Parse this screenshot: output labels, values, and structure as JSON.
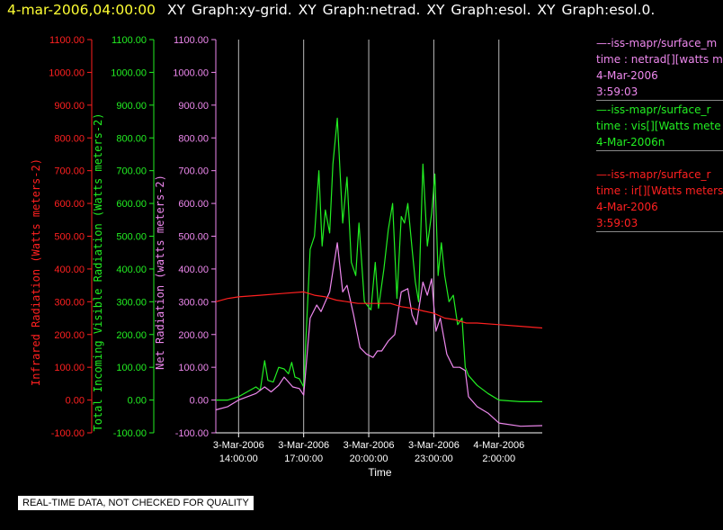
{
  "header": {
    "datetime": "4-mar-2006,04:00:00",
    "graphs": "XY Graph:xy-grid.  XY Graph:netrad.  XY Graph:esol.  XY Graph:esol.0."
  },
  "colors": {
    "background": "#000000",
    "infrared": "#ff2020",
    "visible": "#22ee22",
    "net": "#ee88ee",
    "title_date": "#ffff33",
    "axes": "#ffffff"
  },
  "legend": [
    {
      "lines": [
        "—-iss-mapr/surface_m",
        "time : netrad[][watts m",
        "4-Mar-2006",
        "3:59:03"
      ],
      "color": "#ee88ee"
    },
    {
      "lines": [
        "—-iss-mapr/surface_r",
        "time : vis[][Watts mete",
        "4-Mar-2006n"
      ],
      "color": "#22ee22"
    },
    {
      "lines": [
        "—-iss-mapr/surface_r",
        "time : ir[][Watts meters",
        "4-Mar-2006",
        "3:59:03"
      ],
      "color": "#ff2020"
    }
  ],
  "quality_note": "REAL-TIME DATA, NOT CHECKED FOR QUALITY",
  "chart_data": {
    "type": "line",
    "xlabel": "Time",
    "x_ticks": [
      {
        "hour": 0,
        "line1": "3-Mar-2006",
        "line2": "14:00:00"
      },
      {
        "hour": 3,
        "line1": "3-Mar-2006",
        "line2": "17:00:00"
      },
      {
        "hour": 6,
        "line1": "3-Mar-2006",
        "line2": "20:00:00"
      },
      {
        "hour": 9,
        "line1": "3-Mar-2006",
        "line2": "23:00:00"
      },
      {
        "hour": 12,
        "line1": "4-Mar-2006",
        "line2": "2:00:00"
      }
    ],
    "x_unit": "hours after 3-Mar-2006 14:00:00",
    "xlim": [
      -1.05,
      14.0
    ],
    "grid": "vertical lines at x ticks",
    "y_ticks": [
      "-100.00",
      "0.00",
      "100.00",
      "200.00",
      "300.00",
      "400.00",
      "500.00",
      "600.00",
      "700.00",
      "800.00",
      "900.00",
      "1000.00",
      "1100.00"
    ],
    "ylim": [
      -100,
      1100
    ],
    "axes": [
      {
        "name": "infrared",
        "label": "Infrared Radiation (Watts meters-2)",
        "color": "#ff2020"
      },
      {
        "name": "visible",
        "label": "Total Incoming Visible Radiation (Watts meters-2)",
        "color": "#22ee22"
      },
      {
        "name": "net",
        "label": "Net Radiation (watts meters-2)",
        "color": "#ee88ee"
      }
    ],
    "series": [
      {
        "key": "visible",
        "color": "#22ee22",
        "points": [
          [
            -1.05,
            0
          ],
          [
            -0.5,
            0
          ],
          [
            0.0,
            10
          ],
          [
            0.8,
            40
          ],
          [
            1.0,
            30
          ],
          [
            1.2,
            120
          ],
          [
            1.35,
            60
          ],
          [
            1.6,
            55
          ],
          [
            1.85,
            100
          ],
          [
            2.1,
            95
          ],
          [
            2.3,
            80
          ],
          [
            2.45,
            115
          ],
          [
            2.6,
            70
          ],
          [
            2.8,
            65
          ],
          [
            3.0,
            40
          ],
          [
            3.3,
            460
          ],
          [
            3.5,
            500
          ],
          [
            3.7,
            700
          ],
          [
            3.85,
            470
          ],
          [
            4.0,
            580
          ],
          [
            4.2,
            510
          ],
          [
            4.35,
            720
          ],
          [
            4.55,
            860
          ],
          [
            4.8,
            540
          ],
          [
            5.0,
            680
          ],
          [
            5.2,
            420
          ],
          [
            5.4,
            380
          ],
          [
            5.55,
            540
          ],
          [
            5.8,
            300
          ],
          [
            6.1,
            275
          ],
          [
            6.3,
            420
          ],
          [
            6.45,
            280
          ],
          [
            6.7,
            400
          ],
          [
            6.9,
            520
          ],
          [
            7.1,
            600
          ],
          [
            7.3,
            310
          ],
          [
            7.5,
            560
          ],
          [
            7.65,
            540
          ],
          [
            7.8,
            600
          ],
          [
            8.0,
            460
          ],
          [
            8.15,
            360
          ],
          [
            8.3,
            300
          ],
          [
            8.5,
            720
          ],
          [
            8.7,
            470
          ],
          [
            8.9,
            570
          ],
          [
            9.05,
            690
          ],
          [
            9.2,
            380
          ],
          [
            9.35,
            480
          ],
          [
            9.5,
            380
          ],
          [
            9.7,
            300
          ],
          [
            9.9,
            320
          ],
          [
            10.1,
            230
          ],
          [
            10.3,
            250
          ],
          [
            10.45,
            100
          ],
          [
            10.6,
            75
          ],
          [
            11.0,
            45
          ],
          [
            11.5,
            20
          ],
          [
            12.0,
            0
          ],
          [
            13.0,
            -5
          ],
          [
            14.0,
            -5
          ]
        ]
      },
      {
        "key": "net",
        "color": "#ee88ee",
        "points": [
          [
            -1.05,
            -30
          ],
          [
            -0.5,
            -20
          ],
          [
            0.0,
            0
          ],
          [
            0.8,
            20
          ],
          [
            1.2,
            40
          ],
          [
            1.5,
            25
          ],
          [
            1.85,
            45
          ],
          [
            2.1,
            70
          ],
          [
            2.5,
            40
          ],
          [
            2.8,
            35
          ],
          [
            3.0,
            15
          ],
          [
            3.3,
            250
          ],
          [
            3.6,
            290
          ],
          [
            3.8,
            270
          ],
          [
            4.2,
            330
          ],
          [
            4.55,
            480
          ],
          [
            4.8,
            330
          ],
          [
            5.0,
            350
          ],
          [
            5.3,
            260
          ],
          [
            5.6,
            160
          ],
          [
            5.9,
            140
          ],
          [
            6.2,
            130
          ],
          [
            6.4,
            150
          ],
          [
            6.6,
            150
          ],
          [
            6.9,
            180
          ],
          [
            7.2,
            200
          ],
          [
            7.5,
            330
          ],
          [
            7.8,
            340
          ],
          [
            8.0,
            260
          ],
          [
            8.2,
            230
          ],
          [
            8.5,
            360
          ],
          [
            8.7,
            320
          ],
          [
            8.9,
            370
          ],
          [
            9.1,
            210
          ],
          [
            9.3,
            250
          ],
          [
            9.6,
            140
          ],
          [
            9.9,
            100
          ],
          [
            10.2,
            100
          ],
          [
            10.45,
            90
          ],
          [
            10.6,
            10
          ],
          [
            11.0,
            -20
          ],
          [
            11.5,
            -40
          ],
          [
            12.0,
            -70
          ],
          [
            13.0,
            -80
          ],
          [
            14.0,
            -78
          ]
        ]
      },
      {
        "key": "infrared",
        "color": "#ff2020",
        "points": [
          [
            -1.05,
            300
          ],
          [
            -0.5,
            310
          ],
          [
            0.0,
            315
          ],
          [
            1.0,
            320
          ],
          [
            2.0,
            325
          ],
          [
            3.0,
            330
          ],
          [
            3.5,
            320
          ],
          [
            4.0,
            315
          ],
          [
            4.5,
            305
          ],
          [
            5.0,
            300
          ],
          [
            5.5,
            295
          ],
          [
            6.0,
            295
          ],
          [
            7.0,
            295
          ],
          [
            7.5,
            285
          ],
          [
            8.0,
            280
          ],
          [
            8.5,
            272
          ],
          [
            9.0,
            265
          ],
          [
            9.5,
            250
          ],
          [
            10.0,
            245
          ],
          [
            10.5,
            235
          ],
          [
            11.0,
            235
          ],
          [
            12.0,
            230
          ],
          [
            13.0,
            225
          ],
          [
            14.0,
            220
          ]
        ]
      }
    ]
  }
}
